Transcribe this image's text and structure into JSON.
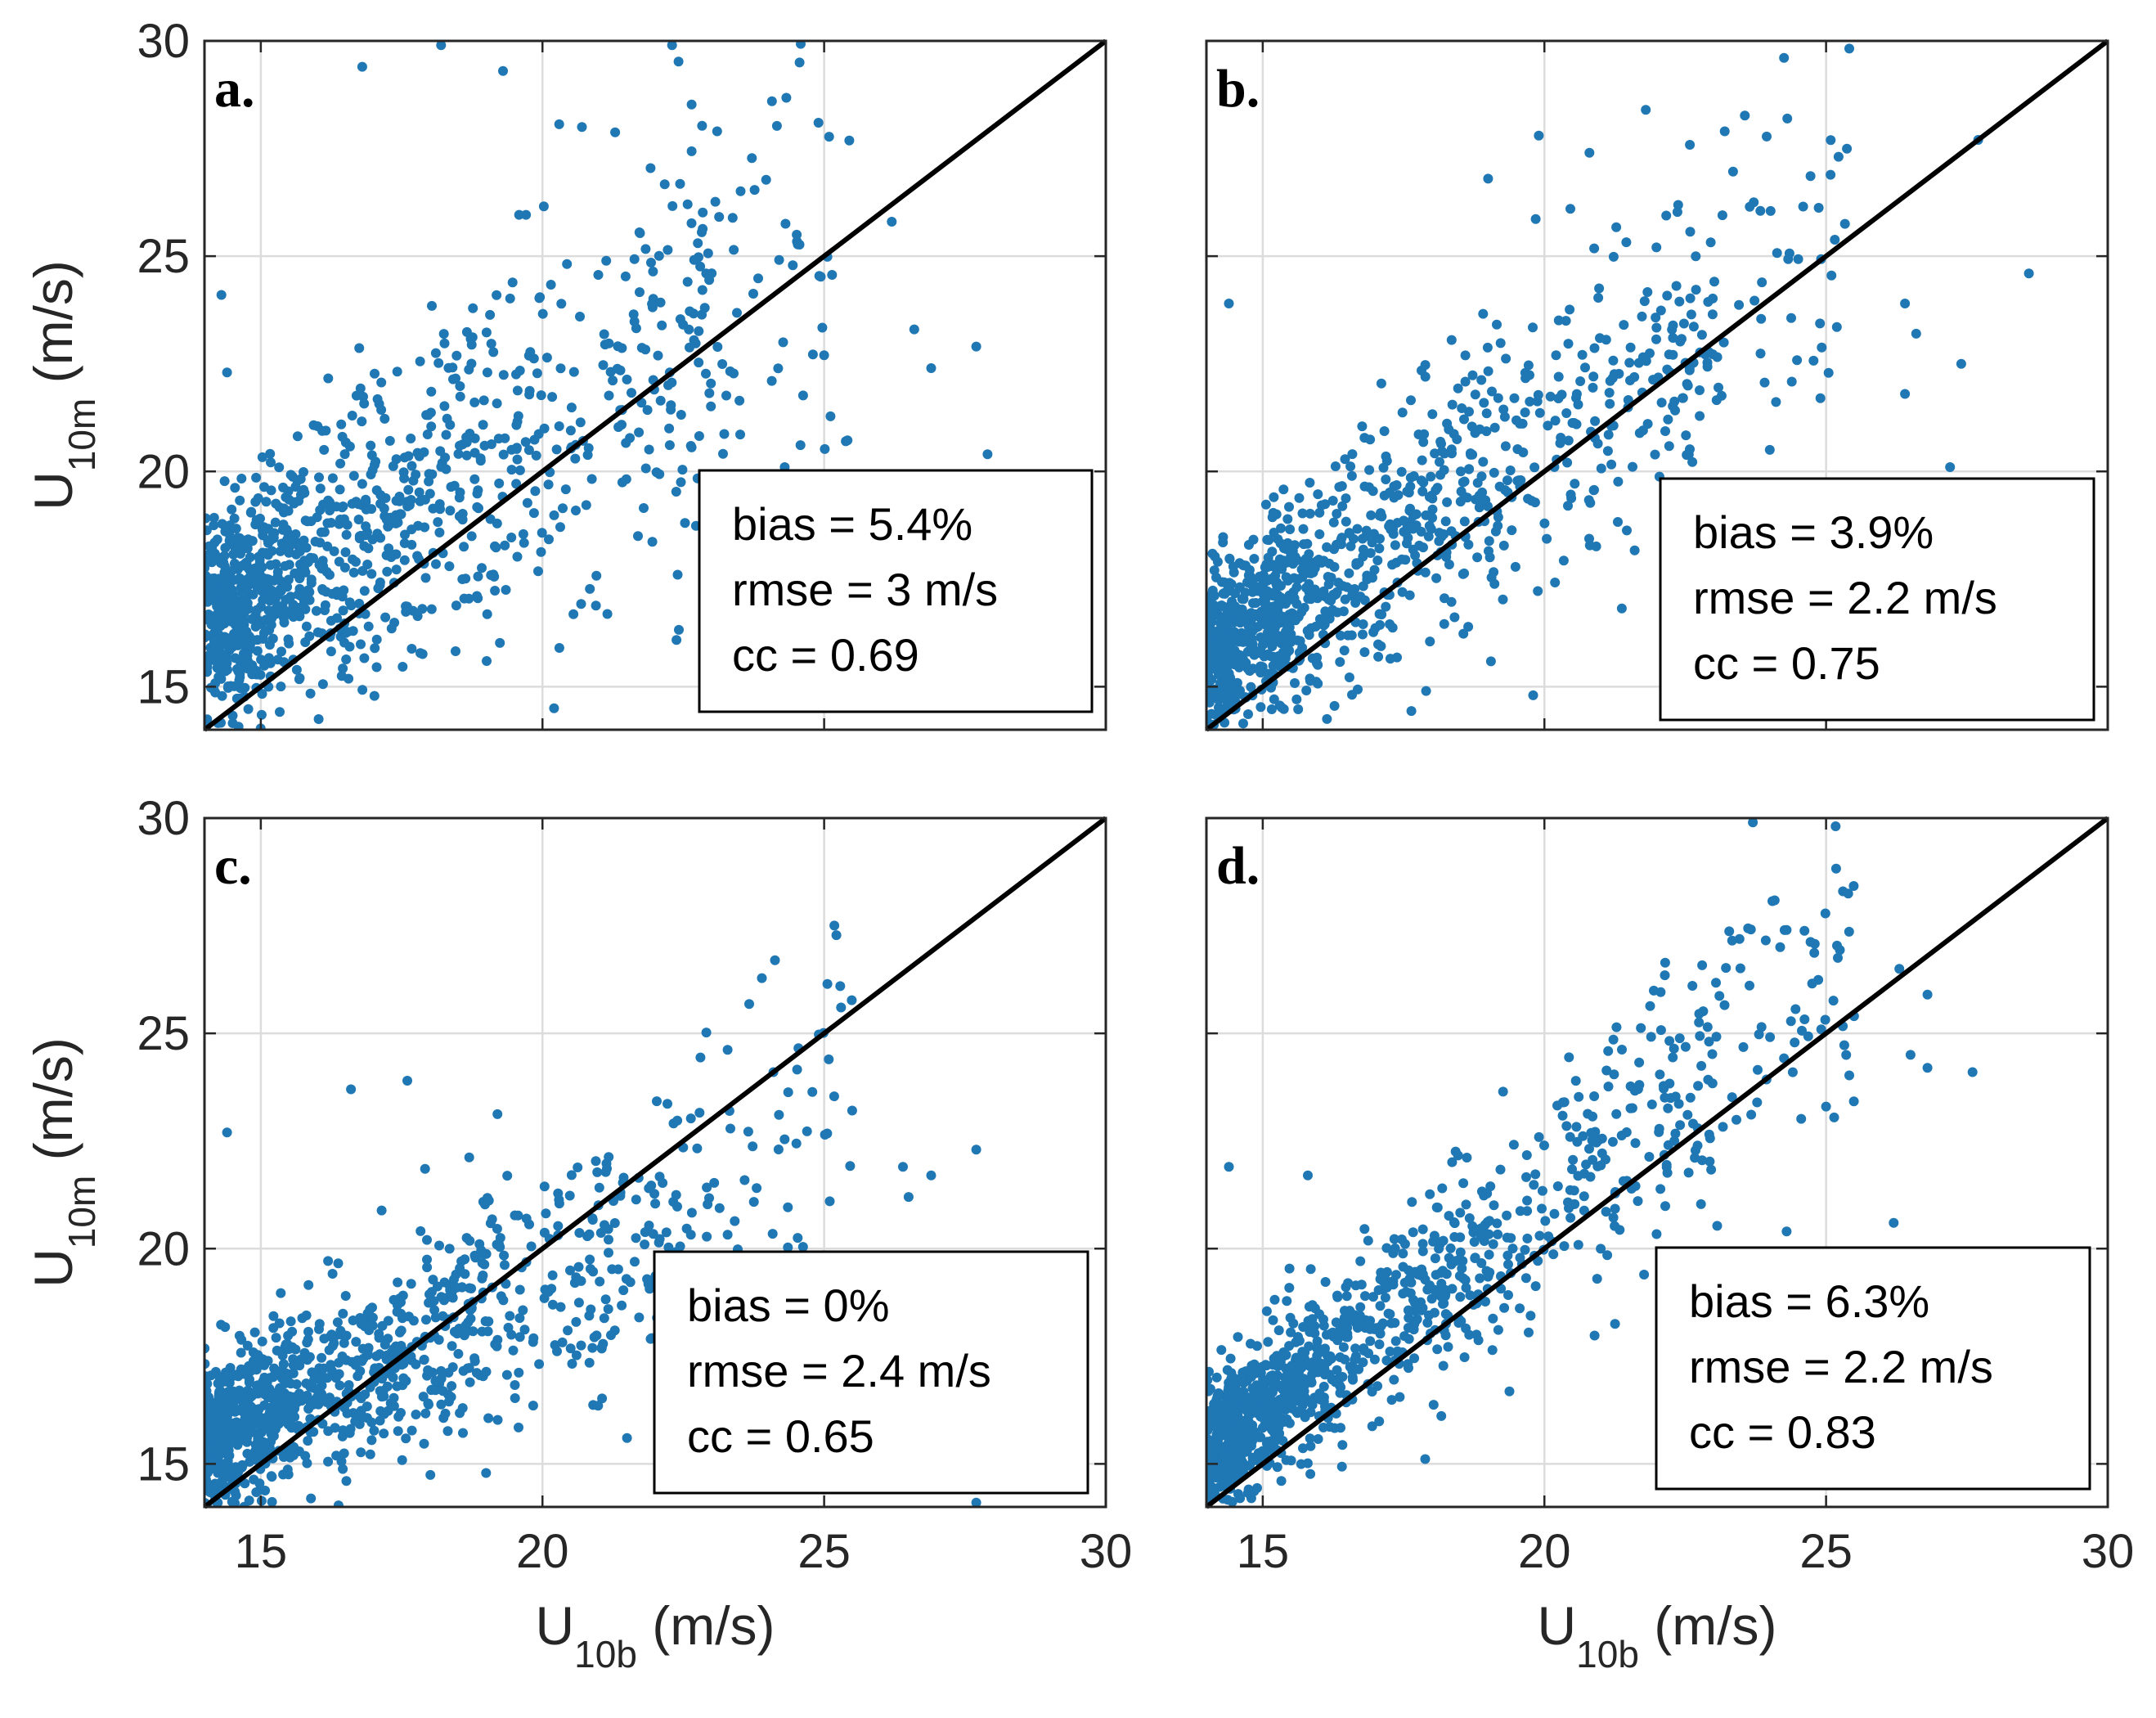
{
  "figure": {
    "background": "#ffffff",
    "marker_color": "#1f77b4",
    "line_color": "#000000"
  },
  "chart_data": [
    {
      "type": "scatter",
      "panel": "a.",
      "xlabel": "U",
      "xlabel_sub": "10b",
      "xlabel_unit": " (m/s)",
      "ylabel": "U",
      "ylabel_sub": "10m",
      "ylabel_unit": " (m/s)",
      "xlim": [
        14,
        30
      ],
      "ylim": [
        14,
        30
      ],
      "xticks": [
        "15",
        "20",
        "25",
        "30"
      ],
      "yticks": [
        "15",
        "20",
        "25",
        "30"
      ],
      "grid": true,
      "reference_line": "y = x",
      "stats": [
        "bias = 5.4%",
        "rmse = 3 m/s",
        "cc = 0.69"
      ],
      "model": {
        "n": 1100,
        "slope": 0.78,
        "intercept": 5.5,
        "noise": 2.1,
        "seed": 11
      },
      "outliers": [
        [
          18.2,
          29.9
        ],
        [
          22.3,
          29.9
        ],
        [
          16.8,
          29.4
        ],
        [
          19.3,
          29.3
        ],
        [
          24.9,
          28.1
        ],
        [
          23.1,
          27.9
        ],
        [
          20.7,
          28.0
        ],
        [
          26.2,
          25.8
        ],
        [
          25.0,
          22.7
        ],
        [
          26.6,
          23.3
        ],
        [
          27.7,
          22.9
        ],
        [
          26.9,
          22.4
        ],
        [
          14.3,
          24.1
        ],
        [
          14.4,
          22.3
        ],
        [
          22.4,
          17.6
        ],
        [
          20.3,
          15.9
        ],
        [
          27.9,
          20.4
        ],
        [
          24.3,
          20.1
        ]
      ]
    },
    {
      "type": "scatter",
      "panel": "b.",
      "xlabel": "U",
      "xlabel_sub": "10b",
      "xlabel_unit": " (m/s)",
      "ylabel": "",
      "ylabel_sub": "",
      "ylabel_unit": "",
      "xlim": [
        14,
        30
      ],
      "ylim": [
        14,
        30
      ],
      "xticks": [
        "15",
        "20",
        "25",
        "30"
      ],
      "yticks": [],
      "grid": true,
      "reference_line": "y = x",
      "stats": [
        "bias = 3.9%",
        "rmse = 2.2 m/s",
        "cc = 0.75"
      ],
      "model": {
        "n": 1100,
        "slope": 0.85,
        "intercept": 3.8,
        "noise": 1.6,
        "seed": 23
      },
      "outliers": [
        [
          21.8,
          28.4
        ],
        [
          23.2,
          27.9
        ],
        [
          19.9,
          27.8
        ],
        [
          20.8,
          27.4
        ],
        [
          19.0,
          26.8
        ],
        [
          27.7,
          27.7
        ],
        [
          28.6,
          24.6
        ],
        [
          26.4,
          23.9
        ],
        [
          26.6,
          23.2
        ],
        [
          27.4,
          22.5
        ],
        [
          26.4,
          21.8
        ],
        [
          14.4,
          23.9
        ],
        [
          24.9,
          21.7
        ],
        [
          19.8,
          14.8
        ],
        [
          17.9,
          14.9
        ],
        [
          27.2,
          20.1
        ],
        [
          24.0,
          20.5
        ]
      ]
    },
    {
      "type": "scatter",
      "panel": "c.",
      "xlabel": "U",
      "xlabel_sub": "10b",
      "xlabel_unit": " (m/s)",
      "ylabel": "U",
      "ylabel_sub": "10m",
      "ylabel_unit": " (m/s)",
      "xlim": [
        14,
        30
      ],
      "ylim": [
        14,
        30
      ],
      "xticks": [
        "15",
        "20",
        "25",
        "30"
      ],
      "yticks": [
        "15",
        "20",
        "25",
        "30"
      ],
      "grid": true,
      "reference_line": "y = x",
      "stats": [
        "bias = 0%",
        "rmse = 2.4 m/s",
        "cc = 0.65"
      ],
      "model": {
        "n": 1100,
        "slope": 0.62,
        "intercept": 6.8,
        "noise": 1.5,
        "seed": 37
      },
      "outliers": [
        [
          25.3,
          25.6
        ],
        [
          24.1,
          24.1
        ],
        [
          26.4,
          21.9
        ],
        [
          26.9,
          21.7
        ],
        [
          27.7,
          22.3
        ],
        [
          26.5,
          21.2
        ],
        [
          25.1,
          21.1
        ],
        [
          14.4,
          22.7
        ],
        [
          21.5,
          15.6
        ],
        [
          27.7,
          14.1
        ],
        [
          16.6,
          23.7
        ],
        [
          17.6,
          23.9
        ]
      ]
    },
    {
      "type": "scatter",
      "panel": "d.",
      "xlabel": "U",
      "xlabel_sub": "10b",
      "xlabel_unit": " (m/s)",
      "ylabel": "",
      "ylabel_sub": "",
      "ylabel_unit": "",
      "xlim": [
        14,
        30
      ],
      "ylim": [
        14,
        30
      ],
      "xticks": [
        "15",
        "20",
        "25",
        "30"
      ],
      "yticks": [],
      "grid": true,
      "reference_line": "y = x",
      "stats": [
        "bias = 6.3%",
        "rmse = 2.2 m/s",
        "cc = 0.83"
      ],
      "model": {
        "n": 1100,
        "slope": 0.95,
        "intercept": 2.0,
        "noise": 1.3,
        "seed": 53
      },
      "outliers": [
        [
          23.7,
          29.9
        ],
        [
          25.3,
          28.3
        ],
        [
          24.3,
          27.4
        ],
        [
          26.3,
          26.5
        ],
        [
          26.8,
          25.9
        ],
        [
          27.6,
          24.1
        ],
        [
          26.5,
          24.5
        ],
        [
          26.8,
          24.2
        ],
        [
          25.0,
          23.3
        ],
        [
          14.4,
          21.9
        ],
        [
          26.2,
          20.6
        ],
        [
          24.3,
          20.4
        ],
        [
          15.8,
          21.7
        ]
      ]
    }
  ]
}
